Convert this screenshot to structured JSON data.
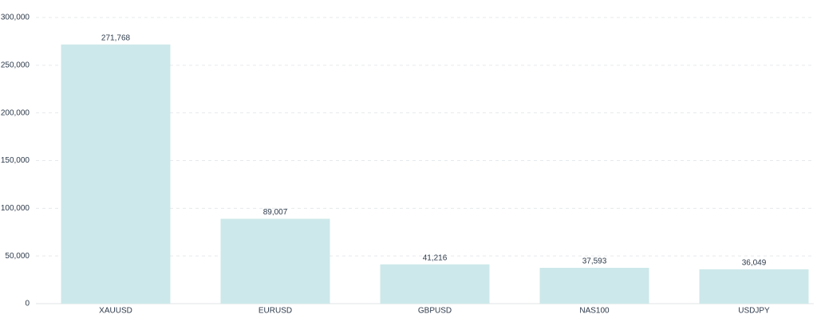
{
  "chart_data": {
    "type": "bar",
    "categories": [
      "XAUUSD",
      "EURUSD",
      "GBPUSD",
      "NAS100",
      "USDJPY"
    ],
    "values": [
      271768,
      89007,
      41216,
      37593,
      36049
    ],
    "value_labels": [
      "271,768",
      "89,007",
      "41,216",
      "37,593",
      "36,049"
    ],
    "color": "#cde8ea",
    "ylim": [
      0,
      300000
    ],
    "yticks": [
      0,
      {
        "value": 50000,
        "label": "50,000"
      },
      {
        "value": 100000,
        "label": "100,000"
      },
      {
        "value": 150000,
        "label": "150,000"
      },
      {
        "value": 200000,
        "label": "200,000"
      },
      {
        "value": 250000,
        "label": "250,000"
      },
      {
        "value": 300000,
        "label": "300,000"
      }
    ],
    "grid": true
  }
}
